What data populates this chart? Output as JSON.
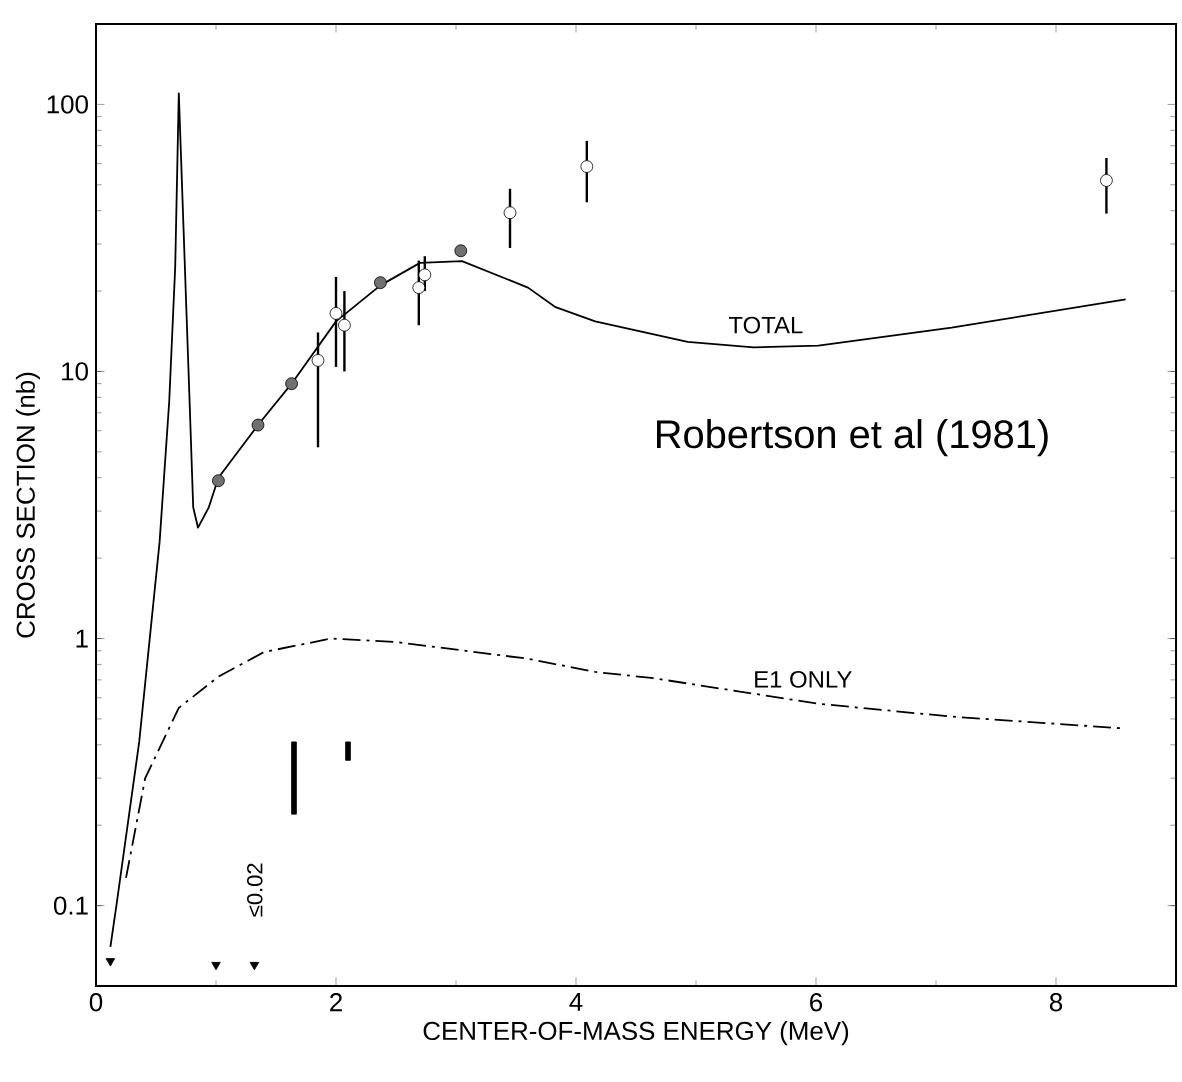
{
  "chart_data": {
    "type": "scatter",
    "xlabel": "CENTER-OF-MASS ENERGY (MeV)",
    "ylabel": "CROSS SECTION (nb)",
    "log": "y",
    "xlim": [
      0,
      9
    ],
    "xticks": [
      0,
      2,
      4,
      6,
      8
    ],
    "ylim": [
      0.05,
      200
    ],
    "yticks": [
      0.1,
      1,
      10,
      100
    ],
    "grid": false,
    "series": [
      {
        "name": "TOTAL",
        "type": "line",
        "line_style": "solid",
        "marker": "none",
        "color": "#000000",
        "x": [
          0.12,
          0.17,
          0.36,
          0.53,
          0.61,
          0.66,
          0.69,
          0.78,
          0.81,
          0.85,
          0.94,
          1.02,
          1.35,
          1.63,
          2.0,
          2.37,
          2.7,
          3.05,
          3.6,
          3.83,
          4.16,
          4.93,
          5.48,
          6.02,
          7.13,
          8.58
        ],
        "values": [
          0.07,
          0.1,
          0.41,
          2.3,
          7.7,
          24.6,
          110,
          7.7,
          3.1,
          2.6,
          3.1,
          4.0,
          6.3,
          9.0,
          15.4,
          21,
          25.5,
          25.9,
          20.6,
          17.4,
          15.4,
          12.9,
          12.3,
          12.5,
          14.6,
          18.6
        ]
      },
      {
        "name": "E1 ONLY",
        "type": "line",
        "line_style": "dashed",
        "marker": "none",
        "color": "#000000",
        "x": [
          0.25,
          0.41,
          0.69,
          1.02,
          1.4,
          1.96,
          2.5,
          3.6,
          4.16,
          4.65,
          6.02,
          7.13,
          8.58
        ],
        "values": [
          0.127,
          0.3,
          0.55,
          0.72,
          0.89,
          1.0,
          0.97,
          0.84,
          0.75,
          0.71,
          0.57,
          0.51,
          0.46
        ]
      },
      {
        "type": "scatter",
        "marker": "circle",
        "color": "#707070",
        "x": [
          1.02,
          1.35,
          1.63,
          2.37,
          3.04
        ],
        "values": [
          3.9,
          6.3,
          9.0,
          21.5,
          28.3
        ]
      },
      {
        "marker": "circle",
        "color": "#ffffff",
        "x": [
          1.85,
          2.0,
          2.07,
          2.69,
          2.74,
          3.45,
          4.09,
          8.42
        ],
        "values": [
          11,
          16.5,
          14.9,
          20.6,
          23,
          39.3,
          58.5,
          51.9
        ],
        "errors": [
          [
            5.2,
            14
          ],
          [
            10.4,
            22.6
          ],
          [
            10,
            20
          ],
          [
            14.9,
            26
          ],
          [
            20,
            27
          ],
          [
            29,
            48.3
          ],
          [
            43,
            73
          ],
          [
            39,
            63
          ]
        ]
      },
      {
        "type": "bar",
        "color": "#000000",
        "x": [
          1.65,
          2.1
        ],
        "base": [
          0.22,
          0.35
        ],
        "values": [
          0.19,
          0.06
        ]
      },
      {
        "type": "scatter",
        "marker": "triangle",
        "color": "#000000",
        "x": [
          0.12,
          1.0,
          1.32
        ],
        "values": [
          0.062,
          0.06,
          0.06
        ]
      }
    ],
    "annotations": [
      "Robertson et al (1981)",
      "≤0.02"
    ]
  }
}
